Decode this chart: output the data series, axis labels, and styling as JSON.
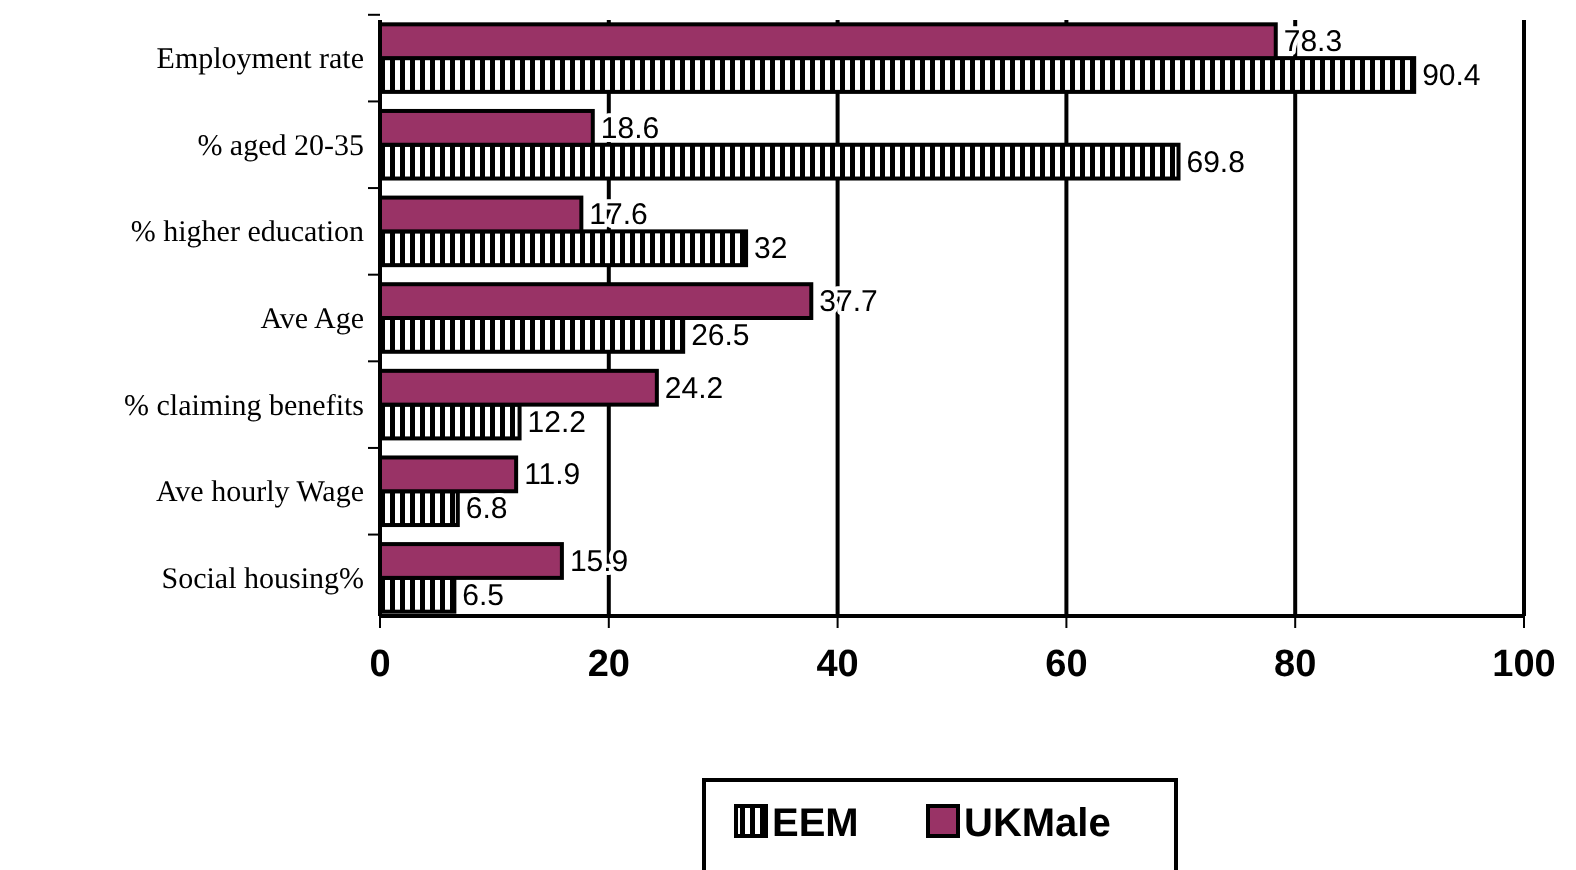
{
  "chart_data": {
    "type": "bar",
    "orientation": "horizontal",
    "categories": [
      "Employment rate",
      "% aged 20-35",
      "% higher education",
      "Ave Age",
      "% claiming benefits",
      "Ave hourly Wage",
      "Social housing%"
    ],
    "series": [
      {
        "name": "EEM",
        "color": "#000000",
        "values": [
          90.4,
          69.8,
          32,
          26.5,
          12.2,
          6.8,
          6.5
        ]
      },
      {
        "name": "UKMale",
        "color": "#993366",
        "values": [
          78.3,
          18.6,
          17.6,
          37.7,
          24.2,
          11.9,
          15.9
        ]
      }
    ],
    "xlim": [
      0,
      100
    ],
    "xticks": [
      0,
      20,
      40,
      60,
      80,
      100
    ],
    "grid": "x",
    "legend": "bottom",
    "data_labels": true
  }
}
